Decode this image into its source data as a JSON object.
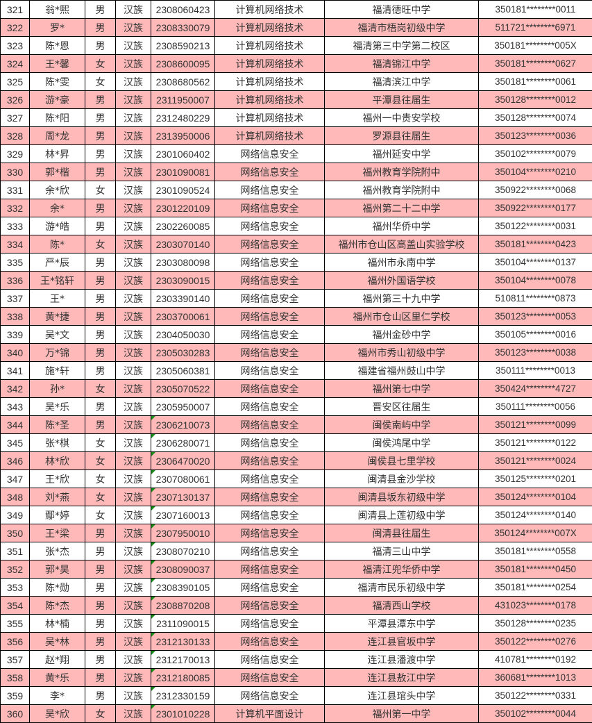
{
  "colors": {
    "highlight_row": "#ffb9b9",
    "note_marker": "#1a8a1a"
  },
  "rows": [
    {
      "no": "321",
      "name": "翁*熙",
      "gender": "男",
      "ethnicity": "汉族",
      "exam_no": "2308060423",
      "major": "计算机网络技术",
      "school": "福清德旺中学",
      "id": "350181********0011",
      "pink": false,
      "marker": false
    },
    {
      "no": "322",
      "name": "罗*",
      "gender": "男",
      "ethnicity": "汉族",
      "exam_no": "2308330079",
      "major": "计算机网络技术",
      "school": "福清市梧岗初级中学",
      "id": "511721********6971",
      "pink": true,
      "marker": false
    },
    {
      "no": "323",
      "name": "陈*恩",
      "gender": "男",
      "ethnicity": "汉族",
      "exam_no": "2308590213",
      "major": "计算机网络技术",
      "school": "福清第三中学第二校区",
      "id": "350181********005X",
      "pink": false,
      "marker": false
    },
    {
      "no": "324",
      "name": "王*馨",
      "gender": "女",
      "ethnicity": "汉族",
      "exam_no": "2308600095",
      "major": "计算机网络技术",
      "school": "福清锦江中学",
      "id": "350181********0627",
      "pink": true,
      "marker": false
    },
    {
      "no": "325",
      "name": "陈*雯",
      "gender": "女",
      "ethnicity": "汉族",
      "exam_no": "2308680562",
      "major": "计算机网络技术",
      "school": "福清滨江中学",
      "id": "350181********0061",
      "pink": false,
      "marker": false
    },
    {
      "no": "326",
      "name": "游*豪",
      "gender": "男",
      "ethnicity": "汉族",
      "exam_no": "2311950007",
      "major": "计算机网络技术",
      "school": "平潭县往届生",
      "id": "350128********0012",
      "pink": true,
      "marker": false
    },
    {
      "no": "327",
      "name": "陈*阳",
      "gender": "男",
      "ethnicity": "汉族",
      "exam_no": "2312480229",
      "major": "计算机网络技术",
      "school": "福州一中贵安学校",
      "id": "350128********0074",
      "pink": false,
      "marker": false
    },
    {
      "no": "328",
      "name": "周*龙",
      "gender": "男",
      "ethnicity": "汉族",
      "exam_no": "2313950006",
      "major": "计算机网络技术",
      "school": "罗源县往届生",
      "id": "350123********0036",
      "pink": true,
      "marker": false
    },
    {
      "no": "329",
      "name": "林*昇",
      "gender": "男",
      "ethnicity": "汉族",
      "exam_no": "2301060402",
      "major": "网络信息安全",
      "school": "福州延安中学",
      "id": "350102********0079",
      "pink": false,
      "marker": false
    },
    {
      "no": "330",
      "name": "郭*楷",
      "gender": "男",
      "ethnicity": "汉族",
      "exam_no": "2301090081",
      "major": "网络信息安全",
      "school": "福州教育学院附中",
      "id": "350104********0210",
      "pink": true,
      "marker": false
    },
    {
      "no": "331",
      "name": "余*欣",
      "gender": "女",
      "ethnicity": "汉族",
      "exam_no": "2301090524",
      "major": "网络信息安全",
      "school": "福州教育学院附中",
      "id": "350922********0068",
      "pink": false,
      "marker": false
    },
    {
      "no": "332",
      "name": "余*",
      "gender": "男",
      "ethnicity": "汉族",
      "exam_no": "2301220109",
      "major": "网络信息安全",
      "school": "福州第二十二中学",
      "id": "350922********0177",
      "pink": true,
      "marker": false
    },
    {
      "no": "333",
      "name": "游*皓",
      "gender": "男",
      "ethnicity": "汉族",
      "exam_no": "2302260085",
      "major": "网络信息安全",
      "school": "福州华侨中学",
      "id": "350122********0031",
      "pink": false,
      "marker": false
    },
    {
      "no": "334",
      "name": "陈*",
      "gender": "女",
      "ethnicity": "汉族",
      "exam_no": "2303070140",
      "major": "网络信息安全",
      "school": "福州市仓山区高盖山实验学校",
      "id": "350181********0423",
      "pink": true,
      "marker": false
    },
    {
      "no": "335",
      "name": "严*辰",
      "gender": "男",
      "ethnicity": "汉族",
      "exam_no": "2303080098",
      "major": "网络信息安全",
      "school": "福州市永南中学",
      "id": "350104********0137",
      "pink": false,
      "marker": false
    },
    {
      "no": "336",
      "name": "王*铭轩",
      "gender": "男",
      "ethnicity": "汉族",
      "exam_no": "2303090015",
      "major": "网络信息安全",
      "school": "福州外国语学校",
      "id": "350104********0078",
      "pink": true,
      "marker": false
    },
    {
      "no": "337",
      "name": "王*",
      "gender": "男",
      "ethnicity": "汉族",
      "exam_no": "2303390140",
      "major": "网络信息安全",
      "school": "福州第三十九中学",
      "id": "510811********0873",
      "pink": false,
      "marker": false
    },
    {
      "no": "338",
      "name": "黄*捷",
      "gender": "男",
      "ethnicity": "汉族",
      "exam_no": "2303700061",
      "major": "网络信息安全",
      "school": "福州市仓山区里仁学校",
      "id": "350123********0053",
      "pink": true,
      "marker": false
    },
    {
      "no": "339",
      "name": "吴*文",
      "gender": "男",
      "ethnicity": "汉族",
      "exam_no": "2304050030",
      "major": "网络信息安全",
      "school": "福州金砂中学",
      "id": "350105********0016",
      "pink": false,
      "marker": false
    },
    {
      "no": "340",
      "name": "万*锦",
      "gender": "男",
      "ethnicity": "汉族",
      "exam_no": "2305030283",
      "major": "网络信息安全",
      "school": "福州市秀山初级中学",
      "id": "350123********0038",
      "pink": true,
      "marker": false
    },
    {
      "no": "341",
      "name": "施*轩",
      "gender": "男",
      "ethnicity": "汉族",
      "exam_no": "2305060381",
      "major": "网络信息安全",
      "school": "福建省福州鼓山中学",
      "id": "350111********0013",
      "pink": false,
      "marker": false
    },
    {
      "no": "342",
      "name": "孙*",
      "gender": "女",
      "ethnicity": "汉族",
      "exam_no": "2305070522",
      "major": "网络信息安全",
      "school": "福州第七中学",
      "id": "350424********4727",
      "pink": true,
      "marker": false
    },
    {
      "no": "343",
      "name": "吴*乐",
      "gender": "男",
      "ethnicity": "汉族",
      "exam_no": "2305950007",
      "major": "网络信息安全",
      "school": "晋安区往届生",
      "id": "350111********0056",
      "pink": false,
      "marker": false
    },
    {
      "no": "344",
      "name": "陈*圣",
      "gender": "男",
      "ethnicity": "汉族",
      "exam_no": "2306210073",
      "major": "网络信息安全",
      "school": "闽侯南屿中学",
      "id": "350121********0099",
      "pink": true,
      "marker": true
    },
    {
      "no": "345",
      "name": "张*棋",
      "gender": "女",
      "ethnicity": "汉族",
      "exam_no": "2306280071",
      "major": "网络信息安全",
      "school": "闽侯鸿尾中学",
      "id": "350121********0122",
      "pink": false,
      "marker": true
    },
    {
      "no": "346",
      "name": "林*欣",
      "gender": "女",
      "ethnicity": "汉族",
      "exam_no": "2306470020",
      "major": "网络信息安全",
      "school": "闽侯县七里学校",
      "id": "350121********0024",
      "pink": true,
      "marker": true
    },
    {
      "no": "347",
      "name": "王*欣",
      "gender": "女",
      "ethnicity": "汉族",
      "exam_no": "2307080061",
      "major": "网络信息安全",
      "school": "闽清县金沙学校",
      "id": "350125********0201",
      "pink": false,
      "marker": true
    },
    {
      "no": "348",
      "name": "刘*燕",
      "gender": "女",
      "ethnicity": "汉族",
      "exam_no": "2307130137",
      "major": "网络信息安全",
      "school": "闽清县坂东初级中学",
      "id": "350124********0104",
      "pink": true,
      "marker": true
    },
    {
      "no": "349",
      "name": "鄢*婷",
      "gender": "女",
      "ethnicity": "汉族",
      "exam_no": "2307160013",
      "major": "网络信息安全",
      "school": "闽清县上莲初级中学",
      "id": "350124********0140",
      "pink": false,
      "marker": true
    },
    {
      "no": "350",
      "name": "王*梁",
      "gender": "男",
      "ethnicity": "汉族",
      "exam_no": "2307950010",
      "major": "网络信息安全",
      "school": "闽清县往届生",
      "id": "350124********007X",
      "pink": true,
      "marker": true
    },
    {
      "no": "351",
      "name": "张*杰",
      "gender": "男",
      "ethnicity": "汉族",
      "exam_no": "2308070210",
      "major": "网络信息安全",
      "school": "福清三山中学",
      "id": "350181********0558",
      "pink": false,
      "marker": true
    },
    {
      "no": "352",
      "name": "郭*昊",
      "gender": "男",
      "ethnicity": "汉族",
      "exam_no": "2308090037",
      "major": "网络信息安全",
      "school": "福清江兜华侨中学",
      "id": "350181********0450",
      "pink": true,
      "marker": true
    },
    {
      "no": "353",
      "name": "陈*勋",
      "gender": "男",
      "ethnicity": "汉族",
      "exam_no": "2308390105",
      "major": "网络信息安全",
      "school": "福清市民乐初级中学",
      "id": "350181********0254",
      "pink": false,
      "marker": true
    },
    {
      "no": "354",
      "name": "陈*杰",
      "gender": "男",
      "ethnicity": "汉族",
      "exam_no": "2308870208",
      "major": "网络信息安全",
      "school": "福清西山学校",
      "id": "431023********0178",
      "pink": true,
      "marker": true
    },
    {
      "no": "355",
      "name": "林*楠",
      "gender": "男",
      "ethnicity": "汉族",
      "exam_no": "2311090015",
      "major": "网络信息安全",
      "school": "平潭县潭东中学",
      "id": "350128********0235",
      "pink": false,
      "marker": true
    },
    {
      "no": "356",
      "name": "吴*林",
      "gender": "男",
      "ethnicity": "汉族",
      "exam_no": "2312130133",
      "major": "网络信息安全",
      "school": "连江县官坂中学",
      "id": "350122********0276",
      "pink": true,
      "marker": true
    },
    {
      "no": "357",
      "name": "赵*翔",
      "gender": "男",
      "ethnicity": "汉族",
      "exam_no": "2312170013",
      "major": "网络信息安全",
      "school": "连江县潘渡中学",
      "id": "410781********0192",
      "pink": false,
      "marker": true
    },
    {
      "no": "358",
      "name": "黄*乐",
      "gender": "男",
      "ethnicity": "汉族",
      "exam_no": "2312180085",
      "major": "网络信息安全",
      "school": "连江县敖江中学",
      "id": "360681********1013",
      "pink": true,
      "marker": true
    },
    {
      "no": "359",
      "name": "李*",
      "gender": "男",
      "ethnicity": "汉族",
      "exam_no": "2312330159",
      "major": "网络信息安全",
      "school": "连江县琯头中学",
      "id": "350122********0331",
      "pink": false,
      "marker": true
    },
    {
      "no": "360",
      "name": "吴*欣",
      "gender": "女",
      "ethnicity": "汉族",
      "exam_no": "2301010228",
      "major": "计算机平面设计",
      "school": "福州第一中学",
      "id": "350102********0044",
      "pink": true,
      "marker": true
    }
  ]
}
